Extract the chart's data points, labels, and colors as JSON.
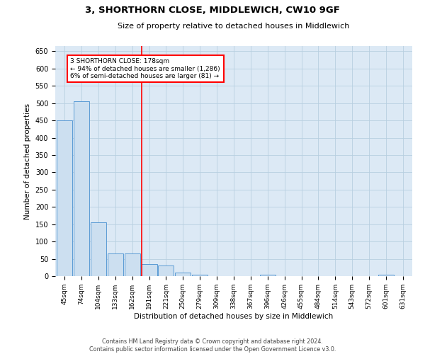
{
  "title": "3, SHORTHORN CLOSE, MIDDLEWICH, CW10 9GF",
  "subtitle": "Size of property relative to detached houses in Middlewich",
  "xlabel": "Distribution of detached houses by size in Middlewich",
  "ylabel": "Number of detached properties",
  "footer_line1": "Contains HM Land Registry data © Crown copyright and database right 2024.",
  "footer_line2": "Contains public sector information licensed under the Open Government Licence v3.0.",
  "bar_labels": [
    "45sqm",
    "74sqm",
    "104sqm",
    "133sqm",
    "162sqm",
    "191sqm",
    "221sqm",
    "250sqm",
    "279sqm",
    "309sqm",
    "338sqm",
    "367sqm",
    "396sqm",
    "426sqm",
    "455sqm",
    "484sqm",
    "514sqm",
    "543sqm",
    "572sqm",
    "601sqm",
    "631sqm"
  ],
  "bar_values": [
    450,
    505,
    155,
    65,
    65,
    35,
    30,
    10,
    5,
    0,
    0,
    0,
    5,
    0,
    0,
    0,
    0,
    0,
    0,
    5,
    0
  ],
  "bar_color": "#ccdff0",
  "bar_edge_color": "#5b9bd5",
  "annotation_text": "3 SHORTHORN CLOSE: 178sqm\n← 94% of detached houses are smaller (1,286)\n6% of semi-detached houses are larger (81) →",
  "annotation_box_color": "white",
  "annotation_box_edge_color": "red",
  "vline_x": 4.55,
  "vline_color": "red",
  "ylim": [
    0,
    665
  ],
  "yticks": [
    0,
    50,
    100,
    150,
    200,
    250,
    300,
    350,
    400,
    450,
    500,
    550,
    600,
    650
  ],
  "bg_color": "#dce9f5",
  "plot_bg_color": "white"
}
